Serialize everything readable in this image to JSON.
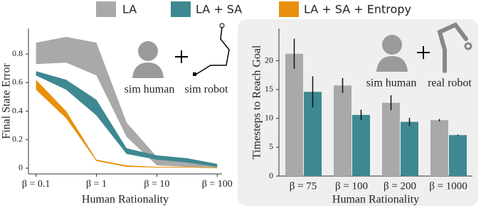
{
  "chart_data": [
    {
      "type": "area_band",
      "legend": "top",
      "xscale": "log",
      "xlabel": "Human Rationality",
      "ylabel": "Final State Error",
      "annotations": [
        "sim human",
        "sim robot"
      ],
      "x": [
        0.1,
        0.316,
        1,
        3.16,
        10,
        31.6,
        100
      ],
      "xlim": [
        0.075,
        120
      ],
      "ylim": [
        -0.04,
        0.98
      ],
      "xticks": [
        {
          "value": 0.1,
          "label": "β = 0.1"
        },
        {
          "value": 1,
          "label": "β = 1"
        },
        {
          "value": 10,
          "label": "β = 10"
        },
        {
          "value": 100,
          "label": "β = 100"
        }
      ],
      "yticks": [
        0,
        0.2,
        0.4,
        0.6,
        0.8
      ],
      "series": [
        {
          "name": "LA",
          "color": "#a9a9a9",
          "upper": [
            0.88,
            0.92,
            0.88,
            0.32,
            0.08,
            0.05,
            0.02
          ],
          "lower": [
            0.73,
            0.74,
            0.65,
            0.22,
            0.02,
            0.01,
            0.005
          ]
        },
        {
          "name": "LA + SA",
          "color": "#3d8891",
          "upper": [
            0.68,
            0.62,
            0.48,
            0.14,
            0.09,
            0.07,
            0.03
          ],
          "lower": [
            0.65,
            0.55,
            0.37,
            0.1,
            0.06,
            0.04,
            0.01
          ]
        },
        {
          "name": "LA + SA + Entropy",
          "color": "#e8900c",
          "upper": [
            0.62,
            0.4,
            0.06,
            0.02,
            0.01,
            0.01,
            0.005
          ],
          "lower": [
            0.55,
            0.35,
            0.05,
            0.01,
            0.005,
            0.005,
            0
          ]
        }
      ]
    },
    {
      "type": "bar",
      "xlabel": "Human Rationality",
      "ylabel": "Timesteps to Reach Goal",
      "annotations": [
        "sim human",
        "real robot"
      ],
      "categories": [
        "β = 75",
        "β = 100",
        "β = 200",
        "β = 1000"
      ],
      "ylim": [
        0,
        25.6
      ],
      "yticks": [
        0,
        5,
        10,
        15,
        20
      ],
      "series": [
        {
          "name": "LA",
          "color": "#a9a9a9",
          "values": [
            21.2,
            15.7,
            12.7,
            9.7
          ],
          "errors": [
            2.6,
            1.3,
            1.3,
            0.2
          ]
        },
        {
          "name": "LA + SA",
          "color": "#3d8891",
          "values": [
            14.6,
            10.6,
            9.4,
            7.1
          ],
          "errors": [
            2.7,
            0.9,
            0.7,
            0.1
          ]
        }
      ]
    }
  ]
}
